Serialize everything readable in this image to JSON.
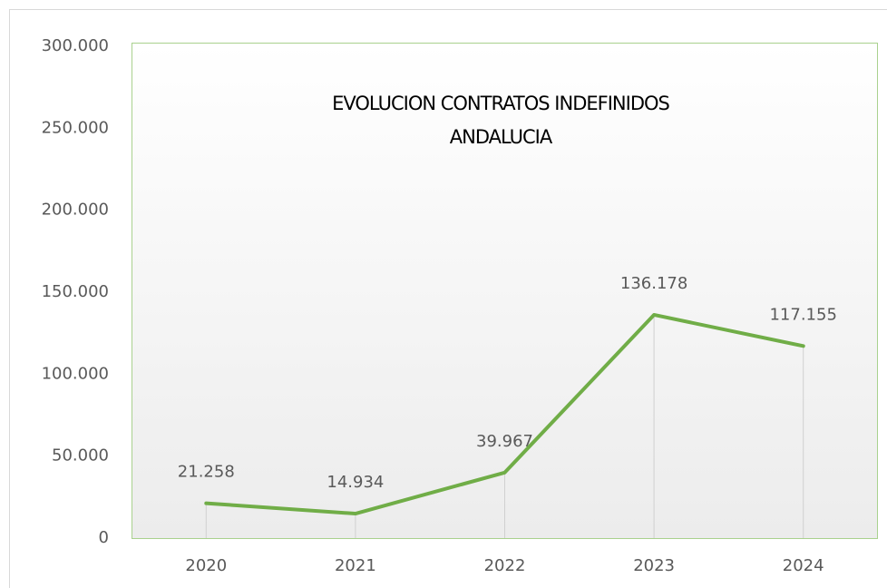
{
  "chart_data": {
    "type": "line",
    "title": [
      "EVOLUCION CONTRATOS INDEFINIDOS",
      "ANDALUCIA"
    ],
    "categories": [
      "2020",
      "2021",
      "2022",
      "2023",
      "2024"
    ],
    "values": [
      21258,
      14934,
      39967,
      136178,
      117155
    ],
    "value_labels": [
      "21.258",
      "14.934",
      "39.967",
      "136.178",
      "117.155"
    ],
    "color": "#70ad47",
    "ylim": [
      0,
      300000
    ],
    "yticks": [
      0,
      {
        "value": 50000,
        "label": "50.000"
      },
      {
        "value": 100000,
        "label": "100.000"
      },
      {
        "value": 150000,
        "label": "150.000"
      },
      {
        "value": 200000,
        "label": "200.000"
      },
      {
        "value": 250000,
        "label": "250.000"
      },
      {
        "value": 300000,
        "label": "300.000"
      }
    ],
    "drop_lines": true
  }
}
